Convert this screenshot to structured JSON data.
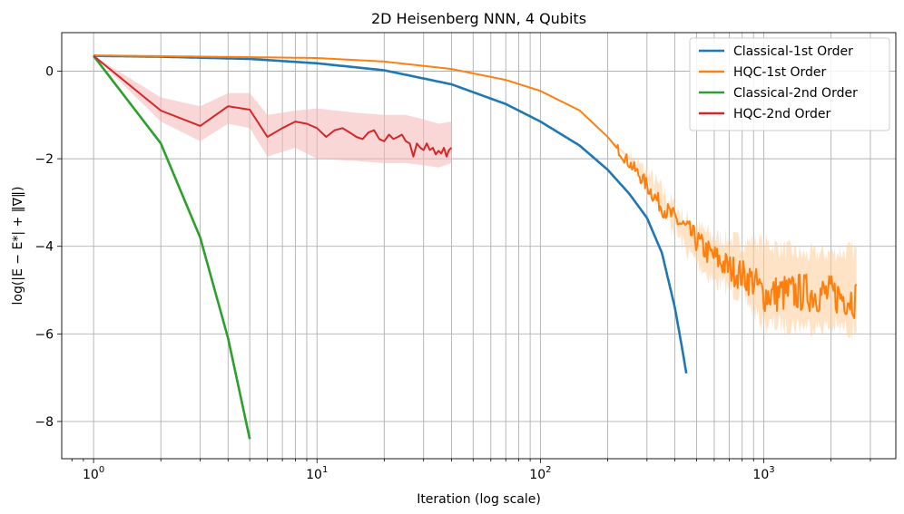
{
  "chart_data": {
    "type": "line",
    "title": "2D Heisenberg NNN, 4 Qubits",
    "xlabel": "Iteration (log scale)",
    "ylabel": "log(|E − E*| + ‖∇‖)",
    "xscale": "log",
    "xlim": [
      0.72,
      3900
    ],
    "ylim": [
      -8.85,
      0.88
    ],
    "grid": true,
    "grid_minor_x": true,
    "legend_position": "top-right",
    "xticks": [
      {
        "value": 1,
        "base": "10",
        "exp": "0"
      },
      {
        "value": 10,
        "base": "10",
        "exp": "1"
      },
      {
        "value": 100,
        "base": "10",
        "exp": "2"
      },
      {
        "value": 1000,
        "base": "10",
        "exp": "3"
      }
    ],
    "yticks": [
      {
        "value": 0,
        "label": "0"
      },
      {
        "value": -2,
        "label": "−2"
      },
      {
        "value": -4,
        "label": "−4"
      },
      {
        "value": -6,
        "label": "−6"
      },
      {
        "value": -8,
        "label": "−8"
      }
    ],
    "series": [
      {
        "name": "Classical-1st Order",
        "color": "#1f77b4",
        "points": [
          [
            1,
            0.35
          ],
          [
            2,
            0.33
          ],
          [
            5,
            0.28
          ],
          [
            10,
            0.18
          ],
          [
            20,
            0.02
          ],
          [
            40,
            -0.3
          ],
          [
            70,
            -0.75
          ],
          [
            100,
            -1.15
          ],
          [
            150,
            -1.7
          ],
          [
            200,
            -2.25
          ],
          [
            250,
            -2.8
          ],
          [
            300,
            -3.35
          ],
          [
            350,
            -4.15
          ],
          [
            400,
            -5.4
          ],
          [
            430,
            -6.3
          ],
          [
            450,
            -6.9
          ]
        ]
      },
      {
        "name": "HQC-1st Order",
        "color": "#ff7f0e",
        "band_color": "#ffcc99",
        "points": [
          [
            1,
            0.36
          ],
          [
            5,
            0.32
          ],
          [
            10,
            0.3
          ],
          [
            20,
            0.22
          ],
          [
            40,
            0.05
          ],
          [
            70,
            -0.2
          ],
          [
            100,
            -0.45
          ],
          [
            150,
            -0.9
          ],
          [
            200,
            -1.5
          ],
          [
            280,
            -2.4
          ],
          [
            350,
            -3.1
          ],
          [
            450,
            -3.6
          ],
          [
            550,
            -4.1
          ],
          [
            700,
            -4.5
          ],
          [
            900,
            -4.8
          ],
          [
            1000,
            -5.1
          ],
          [
            1500,
            -5.05
          ],
          [
            2000,
            -5.1
          ],
          [
            2600,
            -5.2
          ]
        ],
        "band_lower": [
          [
            1,
            0.36
          ],
          [
            200,
            -1.5
          ],
          [
            300,
            -2.5
          ],
          [
            450,
            -4.1
          ],
          [
            600,
            -4.8
          ],
          [
            800,
            -5.1
          ],
          [
            1000,
            -5.8
          ],
          [
            1500,
            -5.8
          ],
          [
            2600,
            -5.9
          ]
        ],
        "band_upper": [
          [
            1,
            0.36
          ],
          [
            200,
            -1.5
          ],
          [
            300,
            -2.3
          ],
          [
            450,
            -3.4
          ],
          [
            600,
            -3.8
          ],
          [
            800,
            -3.9
          ],
          [
            1000,
            -3.9
          ],
          [
            1500,
            -4.2
          ],
          [
            2600,
            -4.1
          ]
        ]
      },
      {
        "name": "Classical-2nd Order",
        "color": "#2ca02c",
        "points": [
          [
            1,
            0.35
          ],
          [
            2,
            -1.65
          ],
          [
            3,
            -3.8
          ],
          [
            4,
            -6.1
          ],
          [
            5,
            -8.4
          ]
        ]
      },
      {
        "name": "HQC-2nd Order",
        "color": "#d62728",
        "band_color": "#f4b6b6",
        "points": [
          [
            1,
            0.35
          ],
          [
            2,
            -0.9
          ],
          [
            3,
            -1.25
          ],
          [
            4,
            -0.8
          ],
          [
            5,
            -0.88
          ],
          [
            6,
            -1.5
          ],
          [
            7,
            -1.3
          ],
          [
            8,
            -1.15
          ],
          [
            9,
            -1.2
          ],
          [
            10,
            -1.3
          ],
          [
            11,
            -1.5
          ],
          [
            12,
            -1.35
          ],
          [
            13,
            -1.3
          ],
          [
            14,
            -1.4
          ],
          [
            15,
            -1.5
          ],
          [
            16,
            -1.55
          ],
          [
            17,
            -1.4
          ],
          [
            18,
            -1.35
          ],
          [
            19,
            -1.55
          ],
          [
            20,
            -1.6
          ],
          [
            21,
            -1.45
          ],
          [
            22,
            -1.55
          ],
          [
            23,
            -1.5
          ],
          [
            24,
            -1.45
          ],
          [
            25,
            -1.6
          ],
          [
            26,
            -1.65
          ],
          [
            27,
            -1.95
          ],
          [
            28,
            -1.65
          ],
          [
            29,
            -1.75
          ],
          [
            30,
            -1.8
          ],
          [
            31,
            -1.65
          ],
          [
            32,
            -1.8
          ],
          [
            33,
            -1.75
          ],
          [
            34,
            -1.9
          ],
          [
            35,
            -1.82
          ],
          [
            36,
            -1.88
          ],
          [
            37,
            -1.75
          ],
          [
            38,
            -1.95
          ],
          [
            39,
            -1.8
          ],
          [
            40,
            -1.75
          ]
        ],
        "band_lower": [
          [
            1,
            0.35
          ],
          [
            2,
            -1.15
          ],
          [
            3,
            -1.6
          ],
          [
            4,
            -1.2
          ],
          [
            5,
            -1.3
          ],
          [
            6,
            -1.95
          ],
          [
            8,
            -1.75
          ],
          [
            10,
            -2.0
          ],
          [
            15,
            -2.05
          ],
          [
            20,
            -2.1
          ],
          [
            25,
            -2.1
          ],
          [
            30,
            -2.15
          ],
          [
            35,
            -2.2
          ],
          [
            40,
            -2.1
          ]
        ],
        "band_upper": [
          [
            1,
            0.35
          ],
          [
            2,
            -0.6
          ],
          [
            3,
            -0.8
          ],
          [
            4,
            -0.5
          ],
          [
            5,
            -0.5
          ],
          [
            6,
            -1.0
          ],
          [
            8,
            -0.9
          ],
          [
            10,
            -0.85
          ],
          [
            15,
            -0.95
          ],
          [
            20,
            -1.0
          ],
          [
            25,
            -1.0
          ],
          [
            30,
            -1.1
          ],
          [
            35,
            -1.2
          ],
          [
            40,
            -1.15
          ]
        ]
      }
    ]
  }
}
